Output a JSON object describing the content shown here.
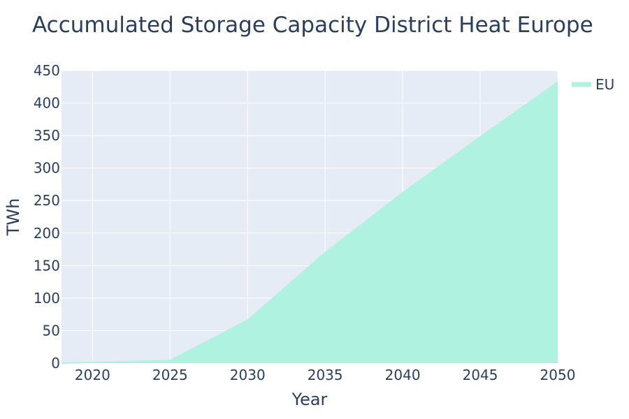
{
  "chart_data": {
    "type": "area",
    "title": "Accumulated Storage Capacity District Heat Europe",
    "xlabel": "Year",
    "ylabel": "TWh",
    "x": [
      2018,
      2025,
      2030,
      2035,
      2040,
      2045,
      2050
    ],
    "series": [
      {
        "name": "EU",
        "values": [
          0,
          4,
          66,
          170,
          262,
          348,
          432
        ]
      }
    ],
    "xlim": [
      2018,
      2050
    ],
    "ylim": [
      0,
      450
    ],
    "x_ticks": [
      2020,
      2025,
      2030,
      2035,
      2040,
      2045,
      2050
    ],
    "y_ticks": [
      0,
      50,
      100,
      150,
      200,
      250,
      300,
      350,
      400,
      450
    ],
    "grid": true,
    "legend_position": "top-right",
    "colors": {
      "plot_background": "#e5ecf6",
      "grid": "#ffffff",
      "series_fill": "#b0f2e0",
      "series_line": "#b0f2e0",
      "text": "#2a3f5f"
    }
  }
}
